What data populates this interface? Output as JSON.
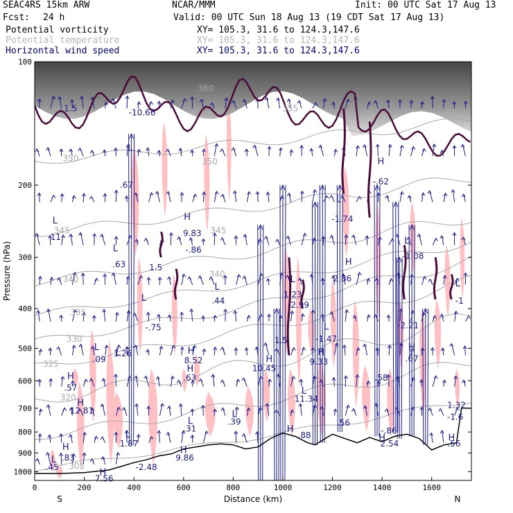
{
  "header": {
    "model": "SEAC4RS 15km ARW",
    "org": "NCAR/MMM",
    "init": "Init: 00 UTC Sat 17 Aug 13",
    "fcst_label": "Fcst:",
    "fcst_value": "24 h",
    "valid": "Valid: 00 UTC Sun 18 Aug 13 (19 CDT Sat 17 Aug 13)"
  },
  "fields": [
    {
      "name": "Potential vorticity",
      "xy": "XY= 105.3, 31.6 to 124.3,147.6",
      "color": "#000000"
    },
    {
      "name": "Potential temperature",
      "xy": "XY= 105.3, 31.6 to 124.3,147.6",
      "color": "#b4b4b4"
    },
    {
      "name": "Horizontal wind speed",
      "xy": "XY= 105.3, 31.6 to 124.3,147.6",
      "color": "#00007a"
    }
  ],
  "colors": {
    "terrain": "#000000",
    "pv_contour": "#4a0a3a",
    "theta": "#a8a8a8",
    "wind": "#1a1a8c",
    "shading": "#ffc0c4",
    "tropopause_shade": "#3a3a3a"
  },
  "chart_data": {
    "type": "cross-section",
    "xlabel": "Distance (km)",
    "ylabel": "Pressure (hPa)",
    "xlim": [
      0,
      1760
    ],
    "ylim": [
      1050,
      100
    ],
    "y_scale": "log-pressure",
    "x_ticks": [
      "0",
      "200",
      "400",
      "600",
      "800",
      "1000",
      "1200",
      "1400",
      "1600"
    ],
    "x_tick_values": [
      0,
      200,
      400,
      600,
      800,
      1000,
      1200,
      1400,
      1600
    ],
    "y_ticks": [
      "100",
      "200",
      "300",
      "400",
      "500",
      "600",
      "700",
      "800",
      "900",
      "1000"
    ],
    "y_tick_values": [
      100,
      200,
      300,
      400,
      500,
      600,
      700,
      800,
      900,
      1000
    ],
    "endpoints": {
      "left": "S",
      "right": "N"
    },
    "terrain_profile": {
      "x": [
        0,
        100,
        200,
        300,
        350,
        400,
        450,
        500,
        550,
        600,
        650,
        700,
        750,
        800,
        850,
        900,
        950,
        1000,
        1050,
        1100,
        1130,
        1150,
        1200,
        1250,
        1300,
        1350,
        1400,
        1450,
        1500,
        1550,
        1600,
        1650,
        1700,
        1720,
        1760
      ],
      "p": [
        1010,
        1010,
        1005,
        990,
        970,
        950,
        935,
        915,
        905,
        880,
        870,
        860,
        855,
        860,
        880,
        870,
        830,
        805,
        820,
        850,
        860,
        845,
        810,
        830,
        850,
        825,
        845,
        820,
        810,
        830,
        885,
        860,
        850,
        700,
        700
      ]
    },
    "pv_labels": [
      {
        "text": "1.5",
        "x": 145,
        "p": 130
      },
      {
        "text": "-10.66",
        "x": 433,
        "p": 133
      },
      {
        "text": ".67",
        "x": 370,
        "p": 200
      },
      {
        "text": "11",
        "x": 85,
        "p": 268
      },
      {
        "text": "9.83",
        "x": 635,
        "p": 262
      },
      {
        "text": "-.86",
        "x": 640,
        "p": 288
      },
      {
        "text": ".63",
        "x": 340,
        "p": 312
      },
      {
        "text": "1.5",
        "x": 488,
        "p": 318
      },
      {
        "text": "-.75",
        "x": 478,
        "p": 445
      },
      {
        "text": ".44",
        "x": 740,
        "p": 383
      },
      {
        "text": "1.23",
        "x": 1040,
        "p": 370
      },
      {
        "text": "-2.99",
        "x": 1063,
        "p": 392
      },
      {
        "text": "-1.74",
        "x": 1240,
        "p": 242
      },
      {
        "text": "-.62",
        "x": 1395,
        "p": 196
      },
      {
        "text": "-1.08",
        "x": 1525,
        "p": 298
      },
      {
        "text": "2.86",
        "x": 1240,
        "p": 338
      },
      {
        "text": "-1",
        "x": 1712,
        "p": 383
      },
      {
        "text": "-2.21",
        "x": 1505,
        "p": 440
      },
      {
        "text": "-1.47",
        "x": 1175,
        "p": 475
      },
      {
        "text": "1.5",
        "x": 993,
        "p": 478
      },
      {
        "text": ".09",
        "x": 260,
        "p": 532
      },
      {
        "text": "1.26",
        "x": 355,
        "p": 515
      },
      {
        "text": "8.52",
        "x": 640,
        "p": 535
      },
      {
        "text": "10.45",
        "x": 925,
        "p": 560
      },
      {
        "text": "9.33",
        "x": 1145,
        "p": 540
      },
      {
        "text": ".67",
        "x": 1520,
        "p": 530
      },
      {
        "text": ".63",
        "x": 625,
        "p": 590
      },
      {
        "text": ".58",
        "x": 1397,
        "p": 590
      },
      {
        "text": ".57",
        "x": 145,
        "p": 625
      },
      {
        "text": "11.34",
        "x": 1095,
        "p": 665
      },
      {
        "text": "12.81",
        "x": 190,
        "p": 710
      },
      {
        "text": ".39",
        "x": 805,
        "p": 755
      },
      {
        "text": "1.32",
        "x": 1700,
        "p": 688
      },
      {
        "text": "-1.6",
        "x": 1695,
        "p": 735
      },
      {
        "text": ".31",
        "x": 625,
        "p": 785
      },
      {
        "text": ".56",
        "x": 1245,
        "p": 760
      },
      {
        "text": "-.86",
        "x": 1427,
        "p": 795
      },
      {
        "text": "1.87",
        "x": 380,
        "p": 855
      },
      {
        "text": ".88",
        "x": 1087,
        "p": 815
      },
      {
        "text": "2.54",
        "x": 1430,
        "p": 855
      },
      {
        "text": ".56",
        "x": 1690,
        "p": 855
      },
      {
        "text": "9.86",
        "x": 605,
        "p": 925
      },
      {
        "text": "-2.48",
        "x": 450,
        "p": 975
      },
      {
        "text": ".83",
        "x": 135,
        "p": 925
      },
      {
        "text": ".45",
        "x": 70,
        "p": 975
      },
      {
        "text": "7.56",
        "x": 280,
        "p": 1040
      }
    ],
    "hl_markers": [
      {
        "text": "L",
        "x": 385,
        "p": 165
      },
      {
        "text": "L",
        "x": 82,
        "p": 248
      },
      {
        "text": "H",
        "x": 615,
        "p": 243
      },
      {
        "text": "L",
        "x": 325,
        "p": 290
      },
      {
        "text": "L",
        "x": 440,
        "p": 383
      },
      {
        "text": "L",
        "x": 735,
        "p": 360
      },
      {
        "text": "L",
        "x": 1040,
        "p": 345
      },
      {
        "text": "L",
        "x": 1225,
        "p": 220
      },
      {
        "text": "H",
        "x": 1395,
        "p": 178
      },
      {
        "text": "H",
        "x": 1265,
        "p": 313
      },
      {
        "text": "L",
        "x": 1500,
        "p": 278
      },
      {
        "text": "L",
        "x": 1705,
        "p": 353
      },
      {
        "text": "L",
        "x": 1175,
        "p": 450
      },
      {
        "text": "L",
        "x": 250,
        "p": 505
      },
      {
        "text": "L",
        "x": 335,
        "p": 520
      },
      {
        "text": "H",
        "x": 630,
        "p": 515
      },
      {
        "text": "H",
        "x": 945,
        "p": 540
      },
      {
        "text": "H",
        "x": 1155,
        "p": 520
      },
      {
        "text": "H",
        "x": 1520,
        "p": 505
      },
      {
        "text": "H",
        "x": 627,
        "p": 570
      },
      {
        "text": "H",
        "x": 145,
        "p": 595
      },
      {
        "text": "L",
        "x": 1085,
        "p": 645
      },
      {
        "text": "H",
        "x": 185,
        "p": 690
      },
      {
        "text": "L",
        "x": 805,
        "p": 735
      },
      {
        "text": "L",
        "x": 627,
        "p": 765
      },
      {
        "text": "L",
        "x": 375,
        "p": 825
      },
      {
        "text": "H",
        "x": 1030,
        "p": 800
      },
      {
        "text": "H",
        "x": 1400,
        "p": 840
      },
      {
        "text": "H",
        "x": 1680,
        "p": 840
      },
      {
        "text": "H",
        "x": 600,
        "p": 900
      },
      {
        "text": "H",
        "x": 125,
        "p": 885
      },
      {
        "text": "L",
        "x": 77,
        "p": 948
      },
      {
        "text": "H",
        "x": 275,
        "p": 1020
      }
    ],
    "theta_labels": [
      {
        "text": "350",
        "x": 145,
        "p": 175
      },
      {
        "text": "345",
        "x": 110,
        "p": 262
      },
      {
        "text": "340",
        "x": 145,
        "p": 345
      },
      {
        "text": "335",
        "x": 175,
        "p": 415
      },
      {
        "text": "330",
        "x": 160,
        "p": 482
      },
      {
        "text": "325",
        "x": 65,
        "p": 555
      },
      {
        "text": "320",
        "x": 135,
        "p": 670
      },
      {
        "text": "305",
        "x": 170,
        "p": 985
      },
      {
        "text": "350",
        "x": 705,
        "p": 178
      },
      {
        "text": "345",
        "x": 740,
        "p": 262
      },
      {
        "text": "340",
        "x": 735,
        "p": 335
      },
      {
        "text": "355",
        "x": 1030,
        "p": 132
      },
      {
        "text": "360",
        "x": 690,
        "p": 118
      }
    ]
  }
}
